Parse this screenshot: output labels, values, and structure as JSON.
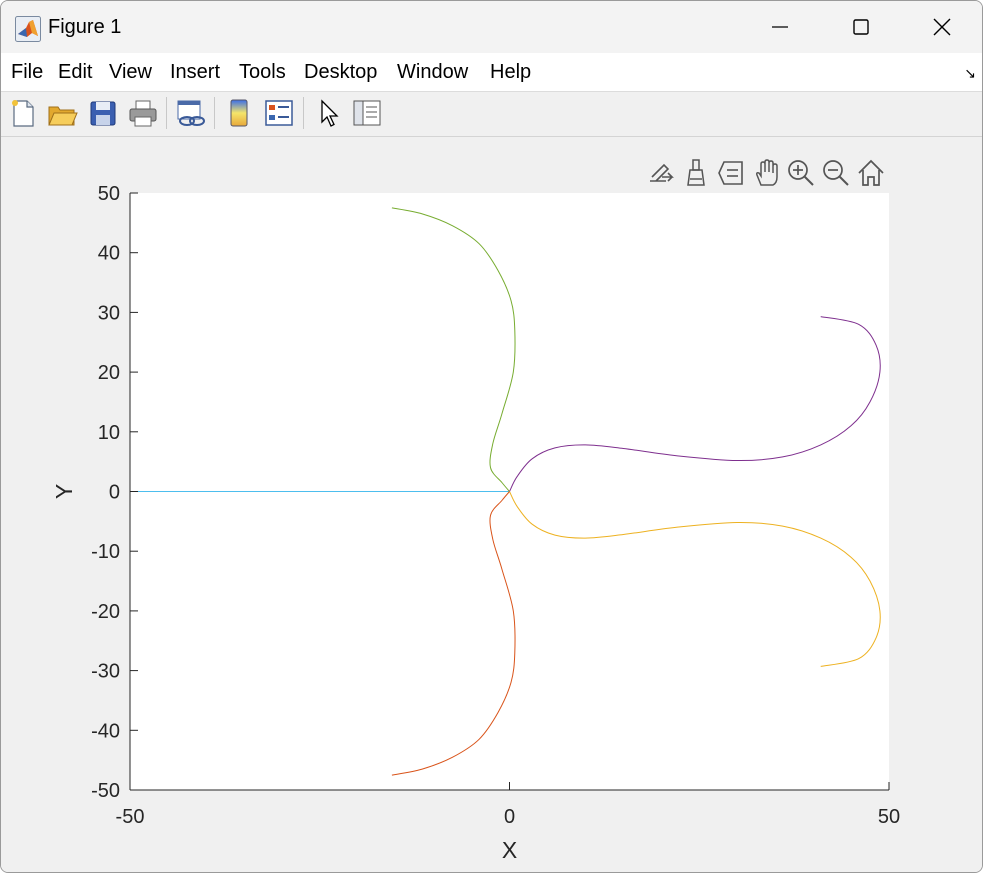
{
  "window": {
    "title": "Figure 1"
  },
  "menu": [
    "File",
    "Edit",
    "View",
    "Insert",
    "Tools",
    "Desktop",
    "Window",
    "Help"
  ],
  "toolbar": {
    "buttons": [
      "new-figure-icon",
      "open-file-icon",
      "save-icon",
      "print-icon",
      "link-plot-icon",
      "colorbar-icon",
      "legend-icon",
      "edit-plot-cursor-icon",
      "property-inspector-icon"
    ]
  },
  "axes_toolbar": [
    "export-brush-icon",
    "data-brush-icon",
    "data-tip-icon",
    "pan-hand-icon",
    "zoom-in-icon",
    "zoom-out-icon",
    "restore-view-home-icon"
  ],
  "chart_data": {
    "type": "line",
    "title": "",
    "xlabel": "X",
    "ylabel": "Y",
    "xlim": [
      -50,
      50
    ],
    "ylim": [
      -50,
      50
    ],
    "xticks": [
      -50,
      0,
      50
    ],
    "yticks": [
      50,
      40,
      30,
      20,
      10,
      0,
      -10,
      -20,
      -30,
      -40,
      -50
    ],
    "grid": false,
    "series": [
      {
        "color": "#4dbeee",
        "x": [
          -50,
          0
        ],
        "y": [
          0,
          0
        ]
      },
      {
        "color": "#77ac30",
        "x": [
          0,
          -1,
          -2.5,
          -2.2,
          -1,
          0.5,
          0.7,
          0.2,
          -1.5,
          -4,
          -7.5,
          -11.5,
          -15.5
        ],
        "y": [
          0,
          1.5,
          4,
          8,
          13,
          20,
          27,
          32,
          37,
          41.5,
          44.5,
          46.5,
          47.5
        ]
      },
      {
        "color": "#d95319",
        "x": [
          0,
          -1,
          -2.5,
          -2.2,
          -1,
          0.5,
          0.7,
          0.2,
          -1.5,
          -4,
          -7.5,
          -11.5,
          -15.5
        ],
        "y": [
          0,
          -1.5,
          -4,
          -8,
          -13,
          -20,
          -27,
          -32,
          -37,
          -41.5,
          -44.5,
          -46.5,
          -47.5
        ]
      },
      {
        "color": "#7e2f8e",
        "x": [
          0,
          1,
          3,
          6,
          10,
          15,
          22,
          30,
          36,
          41,
          45,
          47.5,
          48.8,
          48.3,
          46,
          41
        ],
        "y": [
          0,
          2.5,
          5.5,
          7.3,
          7.8,
          7.2,
          6,
          5.2,
          5.8,
          7.8,
          11,
          15,
          20,
          24.5,
          28,
          29.3
        ]
      },
      {
        "color": "#edb120",
        "x": [
          0,
          1,
          3,
          6,
          10,
          15,
          22,
          30,
          36,
          41,
          45,
          47.5,
          48.8,
          48.3,
          46,
          41
        ],
        "y": [
          0,
          -2.5,
          -5.5,
          -7.3,
          -7.8,
          -7.2,
          -6,
          -5.2,
          -5.8,
          -7.8,
          -11,
          -15,
          -20,
          -24.5,
          -28,
          -29.3
        ]
      }
    ]
  }
}
